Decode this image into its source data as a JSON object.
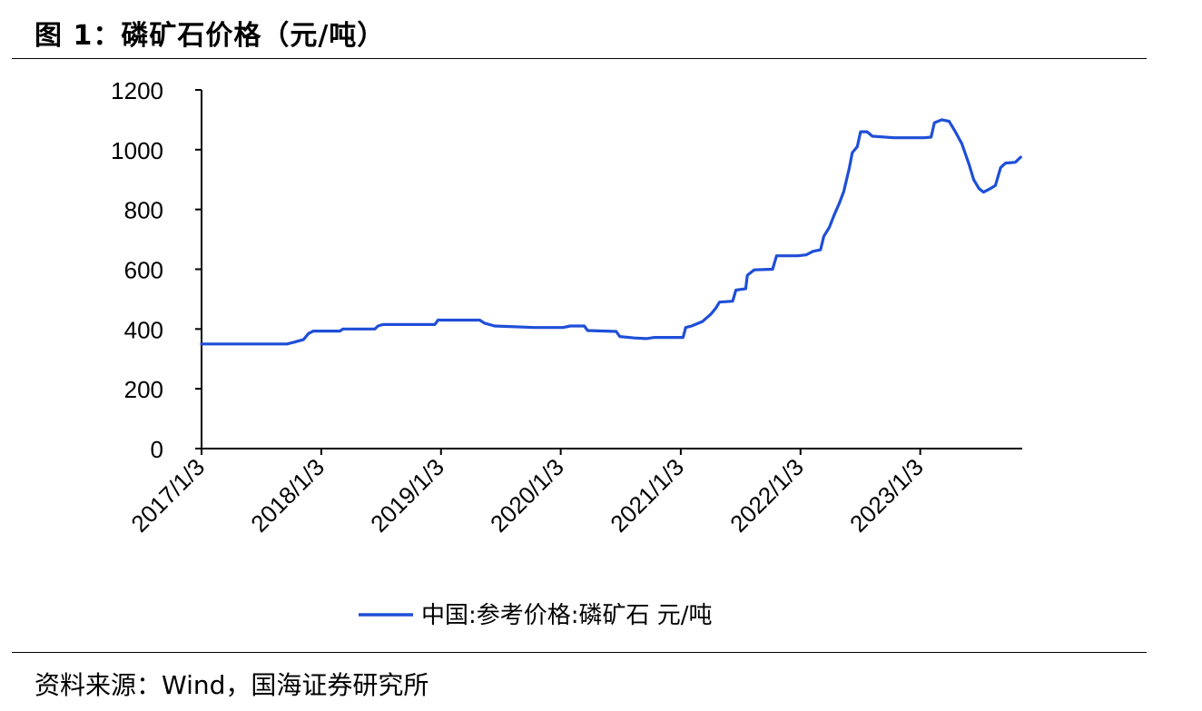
{
  "figure": {
    "title": "图 1：磷矿石价格（元/吨）",
    "source": "资料来源：Wind，国海证券研究所"
  },
  "chart_data": {
    "type": "line",
    "title": "",
    "xlabel": "",
    "ylabel": "",
    "ylim": [
      0,
      1200
    ],
    "y_ticks": [
      "0",
      "200",
      "400",
      "600",
      "800",
      "1000",
      "1200"
    ],
    "x_tick_labels": [
      "2017/1/3",
      "2018/1/3",
      "2019/1/3",
      "2020/1/3",
      "2021/1/3",
      "2022/1/3",
      "2023/1/3"
    ],
    "grid": false,
    "legend_position": "bottom",
    "series": [
      {
        "name": "中国:参考价格:磷矿石 元/吨",
        "color": "#1F4FD8",
        "points": [
          [
            "2017-01-03",
            350
          ],
          [
            "2017-06-01",
            350
          ],
          [
            "2017-09-20",
            350
          ],
          [
            "2017-10-10",
            355
          ],
          [
            "2017-11-10",
            365
          ],
          [
            "2017-11-25",
            385
          ],
          [
            "2017-12-10",
            393
          ],
          [
            "2018-03-01",
            393
          ],
          [
            "2018-03-10",
            400
          ],
          [
            "2018-06-15",
            400
          ],
          [
            "2018-06-25",
            410
          ],
          [
            "2018-07-10",
            415
          ],
          [
            "2018-08-01",
            415
          ],
          [
            "2018-12-15",
            415
          ],
          [
            "2018-12-25",
            430
          ],
          [
            "2019-05-01",
            430
          ],
          [
            "2019-05-15",
            420
          ],
          [
            "2019-06-15",
            410
          ],
          [
            "2019-10-15",
            405
          ],
          [
            "2020-01-10",
            405
          ],
          [
            "2020-02-01",
            410
          ],
          [
            "2020-03-15",
            410
          ],
          [
            "2020-03-25",
            395
          ],
          [
            "2020-06-20",
            392
          ],
          [
            "2020-07-01",
            375
          ],
          [
            "2020-08-15",
            370
          ],
          [
            "2020-09-20",
            368
          ],
          [
            "2020-10-15",
            372
          ],
          [
            "2020-12-05",
            372
          ],
          [
            "2021-01-10",
            372
          ],
          [
            "2021-01-18",
            405
          ],
          [
            "2021-02-05",
            410
          ],
          [
            "2021-03-10",
            425
          ],
          [
            "2021-04-05",
            450
          ],
          [
            "2021-04-20",
            470
          ],
          [
            "2021-05-01",
            490
          ],
          [
            "2021-06-10",
            493
          ],
          [
            "2021-06-20",
            530
          ],
          [
            "2021-07-20",
            535
          ],
          [
            "2021-07-25",
            580
          ],
          [
            "2021-08-15",
            598
          ],
          [
            "2021-10-10",
            600
          ],
          [
            "2021-10-22",
            645
          ],
          [
            "2021-12-25",
            645
          ],
          [
            "2022-01-20",
            648
          ],
          [
            "2022-02-10",
            660
          ],
          [
            "2022-03-05",
            665
          ],
          [
            "2022-03-15",
            710
          ],
          [
            "2022-04-01",
            740
          ],
          [
            "2022-04-15",
            780
          ],
          [
            "2022-05-01",
            820
          ],
          [
            "2022-05-15",
            860
          ],
          [
            "2022-06-01",
            940
          ],
          [
            "2022-06-10",
            990
          ],
          [
            "2022-06-25",
            1010
          ],
          [
            "2022-07-05",
            1060
          ],
          [
            "2022-07-25",
            1060
          ],
          [
            "2022-08-10",
            1045
          ],
          [
            "2022-10-15",
            1040
          ],
          [
            "2023-01-15",
            1040
          ],
          [
            "2023-02-05",
            1042
          ],
          [
            "2023-02-15",
            1090
          ],
          [
            "2023-03-10",
            1100
          ],
          [
            "2023-04-01",
            1095
          ],
          [
            "2023-04-20",
            1060
          ],
          [
            "2023-05-10",
            1020
          ],
          [
            "2023-06-01",
            950
          ],
          [
            "2023-06-15",
            900
          ],
          [
            "2023-07-01",
            870
          ],
          [
            "2023-07-15",
            858
          ],
          [
            "2023-08-05",
            870
          ],
          [
            "2023-08-20",
            880
          ],
          [
            "2023-09-05",
            940
          ],
          [
            "2023-09-20",
            955
          ],
          [
            "2023-10-20",
            958
          ],
          [
            "2023-11-05",
            975
          ]
        ]
      }
    ]
  }
}
